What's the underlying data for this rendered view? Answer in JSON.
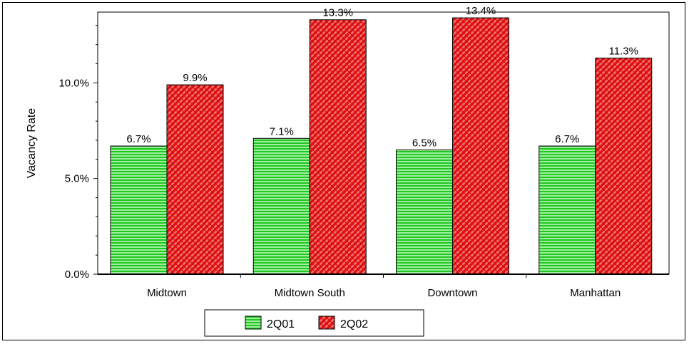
{
  "chart_data": {
    "type": "bar",
    "title": "",
    "xlabel": "",
    "ylabel": "Vacancy Rate",
    "categories": [
      "Midtown",
      "Midtown South",
      "Downtown",
      "Manhattan"
    ],
    "series": [
      {
        "name": "2Q01",
        "values": [
          6.7,
          7.1,
          6.5,
          6.7
        ],
        "labels": [
          "6.7%",
          "7.1%",
          "6.5%",
          "6.7%"
        ],
        "color": "#22c522",
        "pattern": "horizontal-lines"
      },
      {
        "name": "2Q02",
        "values": [
          9.9,
          13.3,
          13.4,
          11.3
        ],
        "labels": [
          "9.9%",
          "13.3%",
          "13.4%",
          "11.3%"
        ],
        "color": "#e01010",
        "pattern": "diagonal-crosshatch"
      }
    ],
    "ylim": [
      0,
      13.7
    ],
    "yticks": [
      0,
      5,
      10
    ],
    "ytick_labels": [
      "0.0%",
      "5.0%",
      "10.0%"
    ],
    "grid": false,
    "legend_position": "bottom-center"
  }
}
